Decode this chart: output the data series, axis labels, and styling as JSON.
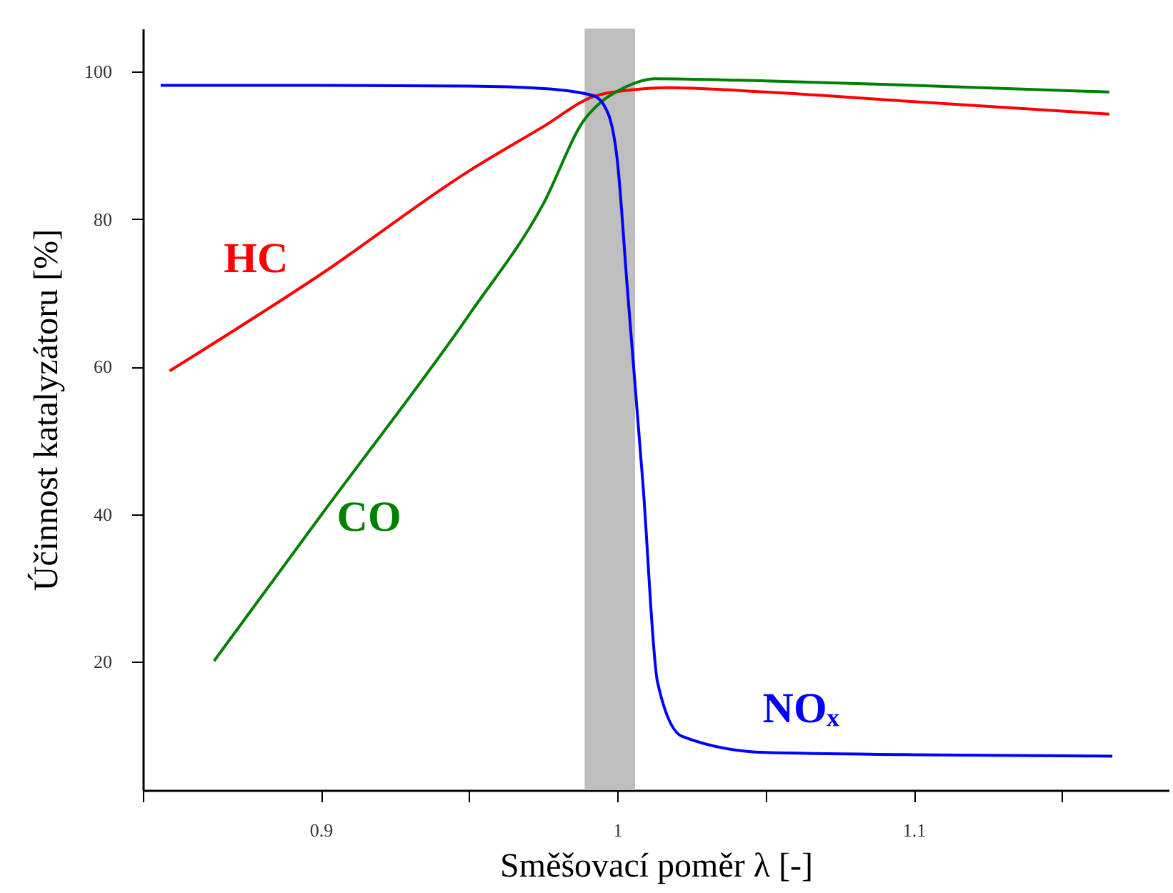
{
  "chart_data": {
    "type": "line",
    "xlabel": "Směšovací poměr λ [-]",
    "ylabel": "Účinnost katalyzátoru [%]",
    "xlim": [
      0.84,
      1.186
    ],
    "ylim": [
      2.6,
      105.8
    ],
    "xticks": [
      {
        "value": 0.84,
        "label": null
      },
      0.9,
      {
        "value": 0.95,
        "label": null
      },
      1,
      {
        "value": 1.05,
        "label": null
      },
      1.1,
      {
        "value": 1.15,
        "label": null
      }
    ],
    "yticks": [
      20,
      40,
      60,
      80,
      100
    ],
    "grid": false,
    "marker": "none",
    "line_style": "solid",
    "bands": [
      {
        "axis": "x",
        "from": 0.989,
        "to": 1.006,
        "color": "#bebebe"
      }
    ],
    "series": [
      {
        "name": "HC",
        "color": "#ff0000",
        "x": [
          0.849,
          0.9,
          0.95,
          0.975,
          0.992,
          1.005,
          1.017,
          1.05,
          1.1,
          1.166
        ],
        "values": [
          59.4,
          72.5,
          86.5,
          92.5,
          96.6,
          97.5,
          97.8,
          97.2,
          95.9,
          94.2
        ]
      },
      {
        "name": "CO",
        "color": "#008000",
        "x": [
          0.864,
          0.9,
          0.95,
          0.975,
          0.989,
          0.995,
          1.0,
          1.013,
          1.05,
          1.1,
          1.166
        ],
        "values": [
          20.1,
          39.8,
          67,
          82,
          93.5,
          96,
          97.3,
          99,
          98.7,
          98.1,
          97.2
        ]
      },
      {
        "name": "NOₓ",
        "color": "#0000ff",
        "x": [
          0.846,
          0.9,
          0.95,
          0.974,
          0.992,
          0.997,
          1.0,
          1.0034,
          1.0087,
          1.0136,
          1.0218,
          1.05,
          1.1,
          1.167
        ],
        "values": [
          98.1,
          98.1,
          98,
          97.7,
          96.7,
          94.2,
          88,
          70.6,
          43.9,
          17.2,
          9.9,
          7.7,
          7.4,
          7.2
        ]
      }
    ]
  }
}
